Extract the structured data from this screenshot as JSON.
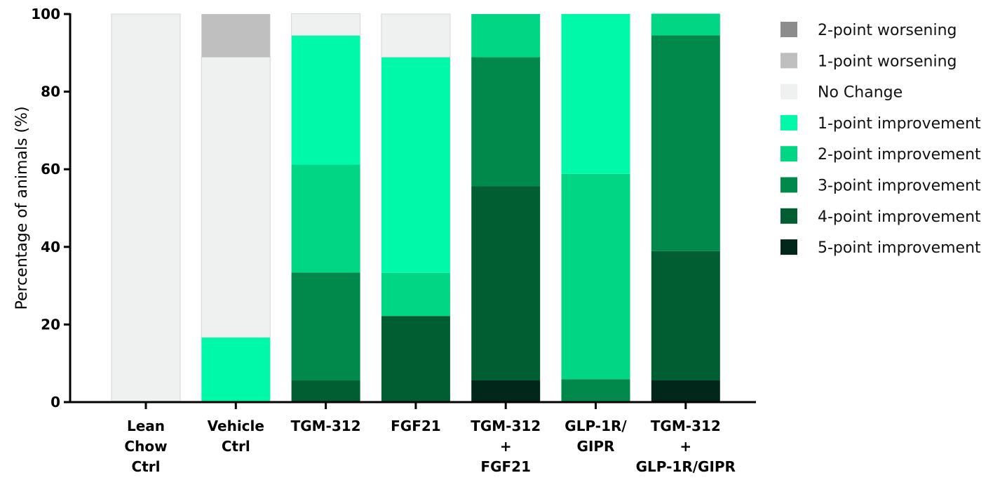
{
  "chart_data": {
    "type": "bar",
    "stacked": true,
    "title": "",
    "xlabel": "",
    "ylabel": "Percentage of animals (%)",
    "ylim": [
      0,
      100
    ],
    "yticks": [
      "0",
      "20",
      "40",
      "60",
      "80",
      "100"
    ],
    "grid": false,
    "legend_position": "right",
    "categories": [
      [
        "Lean",
        "Chow",
        "Ctrl"
      ],
      [
        "Vehicle",
        "Ctrl"
      ],
      [
        "TGM-312"
      ],
      [
        "FGF21"
      ],
      [
        "TGM-312",
        "+",
        "FGF21"
      ],
      [
        "GLP-1R/",
        "GIPR"
      ],
      [
        "TGM-312",
        "+",
        "GLP-1R/GIPR"
      ]
    ],
    "series": [
      {
        "name": "5-point improvement",
        "color": "#01261a",
        "values": [
          0,
          0,
          0,
          0,
          5.6,
          0,
          5.6
        ]
      },
      {
        "name": "4-point improvement",
        "color": "#005e32",
        "values": [
          0,
          0,
          5.6,
          22.2,
          50.0,
          0,
          33.3
        ]
      },
      {
        "name": "3-point improvement",
        "color": "#00894b",
        "values": [
          0,
          0,
          27.8,
          0,
          33.3,
          5.9,
          55.6
        ]
      },
      {
        "name": "2-point improvement",
        "color": "#00d684",
        "values": [
          0,
          0,
          27.8,
          11.1,
          11.1,
          52.9,
          5.6
        ]
      },
      {
        "name": "1-point improvement",
        "color": "#00f9a8",
        "values": [
          0,
          16.7,
          33.3,
          55.6,
          0,
          41.2,
          0
        ]
      },
      {
        "name": "No Change",
        "color": "#eff0f0",
        "values": [
          100,
          72.2,
          5.6,
          11.1,
          0,
          0,
          0
        ]
      },
      {
        "name": "1-point worsening",
        "color": "#bfbfbf",
        "values": [
          0,
          11.1,
          0,
          0,
          0,
          0,
          0
        ]
      },
      {
        "name": "2-point worsening",
        "color": "#8c8c8c",
        "values": [
          0,
          0,
          0,
          0,
          0,
          0,
          0
        ]
      }
    ],
    "legend_order": [
      "2-point worsening",
      "1-point worsening",
      "No Change",
      "1-point improvement",
      "2-point improvement",
      "3-point improvement",
      "4-point improvement",
      "5-point improvement"
    ]
  }
}
